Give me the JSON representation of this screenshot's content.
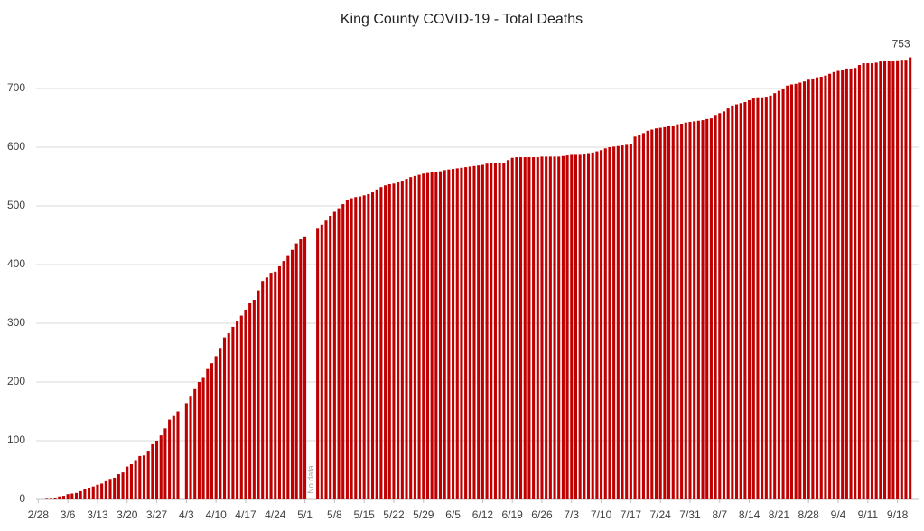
{
  "chart_data": {
    "type": "bar",
    "title": "King County COVID-19 - Total Deaths",
    "color": "#c00000",
    "grid": true,
    "ylim": [
      0,
      800
    ],
    "yticks": [
      0,
      100,
      200,
      300,
      400,
      500,
      600,
      700
    ],
    "annotations": [
      "No data"
    ],
    "categories": [
      "2/28",
      null,
      null,
      null,
      null,
      null,
      null,
      "3/6",
      null,
      null,
      null,
      null,
      null,
      null,
      "3/13",
      null,
      null,
      null,
      null,
      null,
      null,
      "3/20",
      null,
      null,
      null,
      null,
      null,
      null,
      "3/27",
      null,
      null,
      null,
      null,
      null,
      null,
      "4/3",
      null,
      null,
      null,
      null,
      null,
      null,
      "4/10",
      null,
      null,
      null,
      null,
      null,
      null,
      "4/17",
      null,
      null,
      null,
      null,
      null,
      null,
      "4/24",
      null,
      null,
      null,
      null,
      null,
      null,
      "5/1",
      null,
      null,
      null,
      null,
      null,
      null,
      "5/8",
      null,
      null,
      null,
      null,
      null,
      null,
      "5/15",
      null,
      null,
      null,
      null,
      null,
      null,
      "5/22",
      null,
      null,
      null,
      null,
      null,
      null,
      "5/29",
      null,
      null,
      null,
      null,
      null,
      null,
      "6/5",
      null,
      null,
      null,
      null,
      null,
      null,
      "6/12",
      null,
      null,
      null,
      null,
      null,
      null,
      "6/19",
      null,
      null,
      null,
      null,
      null,
      null,
      "6/26",
      null,
      null,
      null,
      null,
      null,
      null,
      "7/3",
      null,
      null,
      null,
      null,
      null,
      null,
      "7/10",
      null,
      null,
      null,
      null,
      null,
      null,
      "7/17",
      null,
      null,
      null,
      null,
      null,
      null,
      "7/24",
      null,
      null,
      null,
      null,
      null,
      null,
      "7/31",
      null,
      null,
      null,
      null,
      null,
      null,
      "8/7",
      null,
      null,
      null,
      null,
      null,
      null,
      "8/14",
      null,
      null,
      null,
      null,
      null,
      null,
      "8/21",
      null,
      null,
      null,
      null,
      null,
      null,
      "8/28",
      null,
      null,
      null,
      null,
      null,
      null,
      "9/4",
      null,
      null,
      null,
      null,
      null,
      null,
      "9/11",
      null,
      null,
      null,
      null,
      null,
      null,
      "9/18",
      null,
      null,
      null
    ],
    "values": [
      0,
      0,
      1,
      1,
      2,
      5,
      6,
      9,
      10,
      11,
      14,
      17,
      20,
      22,
      25,
      27,
      31,
      35,
      37,
      43,
      46,
      56,
      60,
      67,
      74,
      75,
      83,
      94,
      100,
      109,
      121,
      136,
      142,
      150,
      null,
      164,
      175,
      188,
      200,
      207,
      222,
      232,
      244,
      258,
      276,
      283,
      294,
      303,
      313,
      323,
      335,
      340,
      356,
      372,
      378,
      386,
      388,
      397,
      406,
      416,
      425,
      436,
      443,
      448,
      null,
      null,
      461,
      468,
      475,
      483,
      490,
      496,
      503,
      510,
      513,
      515,
      516,
      518,
      520,
      523,
      528,
      532,
      535,
      537,
      538,
      540,
      543,
      546,
      549,
      551,
      553,
      555,
      556,
      557,
      558,
      559,
      561,
      562,
      563,
      564,
      565,
      566,
      567,
      568,
      569,
      570,
      572,
      573,
      573,
      573,
      573,
      578,
      582,
      583,
      583,
      583,
      583,
      583,
      583,
      584,
      584,
      584,
      584,
      584,
      585,
      586,
      587,
      587,
      587,
      588,
      590,
      591,
      593,
      595,
      598,
      600,
      601,
      602,
      603,
      604,
      606,
      618,
      620,
      624,
      628,
      630,
      632,
      633,
      634,
      636,
      637,
      639,
      640,
      642,
      643,
      644,
      645,
      646,
      648,
      649,
      655,
      658,
      661,
      666,
      671,
      673,
      675,
      677,
      680,
      683,
      685,
      685,
      686,
      688,
      692,
      696,
      700,
      705,
      707,
      708,
      710,
      712,
      715,
      717,
      719,
      720,
      722,
      725,
      728,
      730,
      732,
      734,
      734,
      735,
      740,
      743,
      743,
      743,
      744,
      746,
      747,
      747,
      747,
      748,
      749,
      749,
      753
    ]
  }
}
